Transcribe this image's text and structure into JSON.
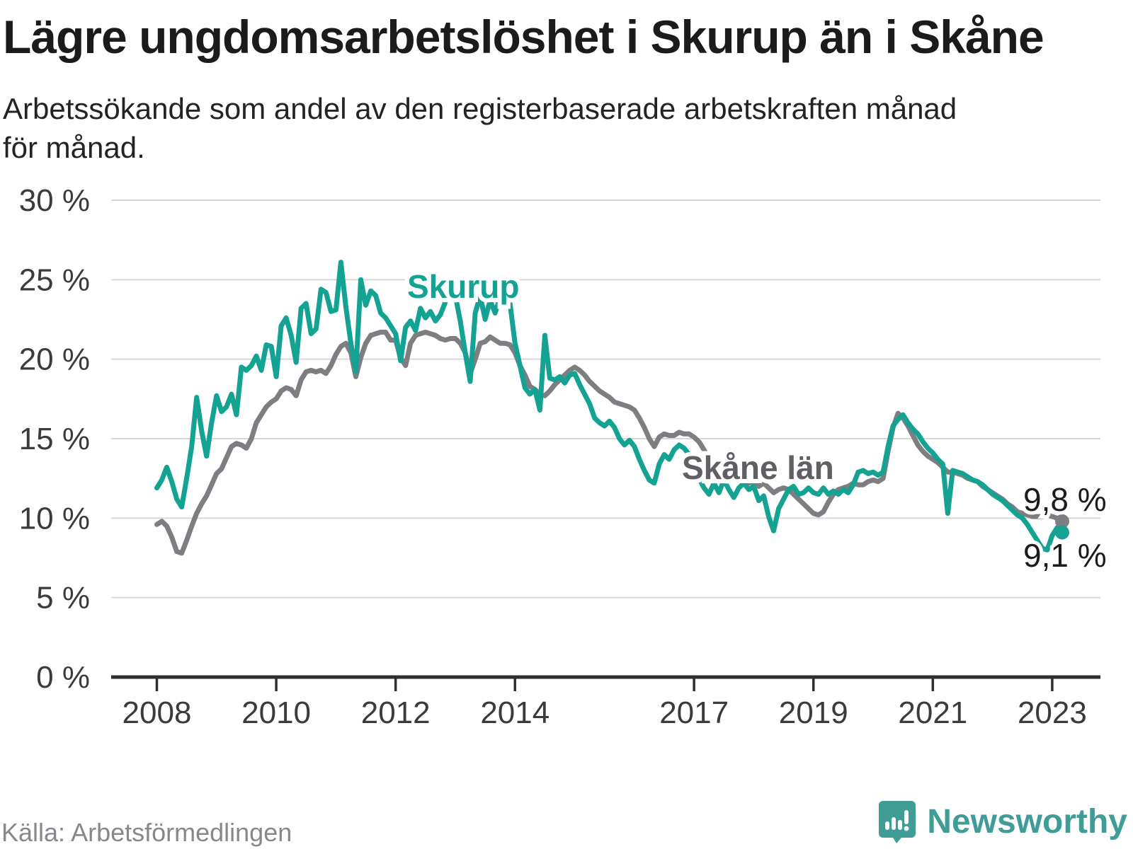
{
  "header": {
    "title": "Lägre ungdomsarbetslöshet i Skurup än i Skåne",
    "subtitle_lines": [
      "Arbetssökande som andel av den registerbaserade arbetskraften månad",
      "för månad."
    ]
  },
  "footer": {
    "source": "Källa: Arbetsförmedlingen",
    "brand": "Newsworthy"
  },
  "colors": {
    "skurup": "#14a392",
    "skane_line": "#7d7d82",
    "skane_label": "#5f5f64",
    "grid": "#d8d8d8",
    "axis": "#2f2f2f",
    "brand_teal": "#3f9d95"
  },
  "chart_data": {
    "type": "line",
    "unit": "%",
    "x_start": "2008-01",
    "x_end": "2023-03",
    "x_tick_years": [
      2008,
      2010,
      2012,
      2014,
      2017,
      2019,
      2021,
      2023
    ],
    "y_ticks": [
      {
        "value": 0,
        "label": "0 %"
      },
      {
        "value": 5,
        "label": "5 %"
      },
      {
        "value": 10,
        "label": "10 %"
      },
      {
        "value": 15,
        "label": "15 %"
      },
      {
        "value": 20,
        "label": "20 %"
      },
      {
        "value": 25,
        "label": "25 %"
      },
      {
        "value": 30,
        "label": "30 %"
      }
    ],
    "ylim": [
      0,
      30
    ],
    "grid": true,
    "series": [
      {
        "name": "Skåne län",
        "end_label": "9,8 %",
        "values": [
          9.6,
          9.8,
          9.5,
          8.8,
          7.9,
          7.8,
          8.6,
          9.5,
          10.3,
          10.9,
          11.4,
          12.1,
          12.8,
          13.1,
          13.8,
          14.5,
          14.7,
          14.6,
          14.4,
          15.0,
          16.0,
          16.5,
          17.0,
          17.3,
          17.5,
          18.0,
          18.2,
          18.1,
          17.7,
          18.7,
          19.2,
          19.3,
          19.2,
          19.3,
          19.1,
          19.6,
          20.3,
          20.8,
          21.0,
          20.4,
          18.9,
          20.1,
          21.0,
          21.5,
          21.6,
          21.7,
          21.7,
          21.2,
          21.2,
          20.1,
          19.6,
          21.0,
          21.5,
          21.6,
          21.7,
          21.6,
          21.5,
          21.3,
          21.2,
          21.3,
          21.3,
          21.0,
          20.4,
          19.1,
          20.0,
          21.0,
          21.1,
          21.4,
          21.2,
          21.0,
          21.0,
          20.9,
          20.4,
          19.6,
          19.0,
          18.3,
          18.1,
          17.8,
          17.7,
          18.0,
          18.4,
          18.7,
          19.0,
          19.3,
          19.5,
          19.3,
          19.0,
          18.6,
          18.3,
          18.0,
          17.8,
          17.6,
          17.3,
          17.2,
          17.1,
          17.0,
          16.8,
          16.3,
          15.7,
          15.0,
          14.5,
          15.1,
          15.3,
          15.2,
          15.2,
          15.4,
          15.3,
          15.3,
          15.1,
          14.8,
          14.3,
          13.7,
          13.3,
          13.0,
          12.7,
          12.5,
          12.7,
          12.5,
          12.4,
          12.2,
          12.3,
          12.0,
          12.2,
          11.9,
          11.6,
          11.8,
          11.9,
          11.8,
          11.5,
          11.2,
          10.9,
          10.6,
          10.3,
          10.2,
          10.4,
          11.0,
          11.5,
          11.8,
          11.9,
          12.0,
          12.2,
          12.1,
          12.1,
          12.3,
          12.4,
          12.3,
          12.5,
          14.2,
          15.7,
          16.6,
          16.3,
          15.8,
          15.2,
          14.6,
          14.2,
          13.9,
          13.7,
          13.5,
          13.2,
          12.9,
          12.9,
          12.8,
          12.7,
          12.5,
          12.4,
          12.3,
          12.0,
          11.8,
          11.6,
          11.4,
          11.2,
          10.9,
          10.7,
          10.4,
          10.3,
          10.2,
          10.1,
          10.1,
          10.1,
          10.2,
          10.1,
          10.0,
          9.8
        ]
      },
      {
        "name": "Skurup",
        "end_label": "9,1 %",
        "values": [
          11.9,
          12.4,
          13.2,
          12.3,
          11.2,
          10.7,
          12.5,
          14.5,
          17.6,
          15.5,
          13.9,
          16.0,
          17.7,
          16.7,
          17.0,
          17.8,
          16.5,
          19.5,
          19.3,
          19.6,
          20.2,
          19.3,
          20.9,
          20.8,
          18.9,
          22.1,
          22.6,
          21.5,
          19.8,
          23.2,
          23.5,
          21.6,
          21.9,
          24.4,
          24.2,
          23.0,
          23.1,
          26.1,
          23.3,
          21.0,
          19.2,
          25.0,
          23.4,
          24.3,
          24.0,
          22.9,
          22.6,
          22.1,
          21.6,
          19.9,
          22.0,
          22.4,
          21.8,
          23.2,
          22.6,
          23.0,
          22.4,
          22.8,
          23.6,
          24.4,
          24.0,
          22.4,
          20.4,
          18.6,
          22.9,
          24.0,
          22.5,
          23.7,
          22.9,
          23.9,
          24.1,
          23.5,
          21.0,
          19.6,
          18.2,
          17.8,
          18.1,
          16.8,
          21.5,
          18.8,
          18.7,
          18.9,
          18.5,
          19.0,
          19.1,
          18.4,
          17.8,
          17.2,
          16.3,
          16.0,
          15.8,
          16.1,
          15.7,
          15.0,
          14.6,
          14.9,
          14.5,
          13.7,
          13.0,
          12.4,
          12.2,
          13.4,
          14.0,
          13.7,
          14.3,
          14.6,
          14.4,
          14.0,
          13.2,
          12.5,
          11.9,
          11.5,
          12.2,
          11.6,
          12.4,
          11.8,
          11.3,
          11.9,
          12.2,
          11.8,
          12.0,
          11.1,
          11.4,
          10.1,
          9.2,
          10.6,
          11.2,
          11.8,
          12.0,
          11.5,
          11.6,
          11.9,
          11.6,
          11.5,
          11.9,
          11.5,
          11.7,
          11.5,
          11.8,
          11.6,
          12.1,
          12.9,
          13.0,
          12.8,
          12.9,
          12.7,
          12.9,
          14.5,
          15.8,
          16.2,
          16.5,
          16.0,
          15.6,
          15.3,
          14.8,
          14.4,
          14.1,
          13.7,
          13.4,
          10.3,
          13.0,
          12.9,
          12.8,
          12.6,
          12.4,
          12.3,
          12.1,
          11.8,
          11.5,
          11.3,
          11.1,
          10.8,
          10.5,
          10.2,
          10.0,
          9.6,
          9.1,
          8.6,
          8.1,
          8.0,
          8.9,
          9.4,
          9.1
        ]
      }
    ]
  }
}
